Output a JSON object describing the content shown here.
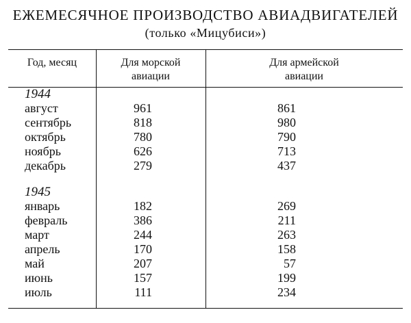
{
  "title": "ЕЖЕМЕСЯЧНОЕ ПРОИЗВОДСТВО АВИАДВИГАТЕЛЕЙ",
  "subtitle": "(только «Мицубиси»)",
  "headers": {
    "col0": "Год, месяц",
    "col1_line1": "Для морской",
    "col1_line2": "авиации",
    "col2_line1": "Для армейской",
    "col2_line2": "авиации"
  },
  "groups": [
    {
      "year": "1944",
      "rows": [
        {
          "month": "август",
          "navy": "961",
          "army": "861"
        },
        {
          "month": "сентябрь",
          "navy": "818",
          "army": "980"
        },
        {
          "month": "октябрь",
          "navy": "780",
          "army": "790"
        },
        {
          "month": "ноябрь",
          "navy": "626",
          "army": "713"
        },
        {
          "month": "декабрь",
          "navy": "279",
          "army": "437"
        }
      ]
    },
    {
      "year": "1945",
      "rows": [
        {
          "month": "январь",
          "navy": "182",
          "army": "269"
        },
        {
          "month": "февраль",
          "navy": "386",
          "army": "211"
        },
        {
          "month": "март",
          "navy": "244",
          "army": "263"
        },
        {
          "month": "апрель",
          "navy": "170",
          "army": "158"
        },
        {
          "month": "май",
          "navy": "207",
          "army": "57"
        },
        {
          "month": "июнь",
          "navy": "157",
          "army": "199"
        },
        {
          "month": "июль",
          "navy": "111",
          "army": "234"
        }
      ]
    }
  ]
}
